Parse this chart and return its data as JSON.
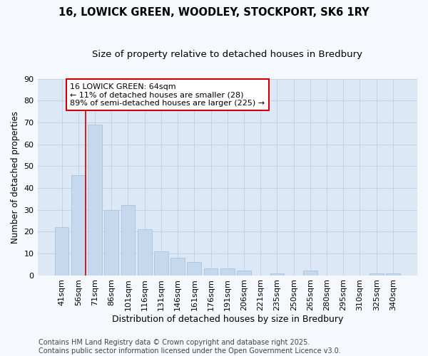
{
  "title": "16, LOWICK GREEN, WOODLEY, STOCKPORT, SK6 1RY",
  "subtitle": "Size of property relative to detached houses in Bredbury",
  "xlabel": "Distribution of detached houses by size in Bredbury",
  "ylabel": "Number of detached properties",
  "categories": [
    "41sqm",
    "56sqm",
    "71sqm",
    "86sqm",
    "101sqm",
    "116sqm",
    "131sqm",
    "146sqm",
    "161sqm",
    "176sqm",
    "191sqm",
    "206sqm",
    "221sqm",
    "235sqm",
    "250sqm",
    "265sqm",
    "280sqm",
    "295sqm",
    "310sqm",
    "325sqm",
    "340sqm"
  ],
  "values": [
    22,
    46,
    69,
    30,
    32,
    21,
    11,
    8,
    6,
    3,
    3,
    2,
    0,
    1,
    0,
    2,
    0,
    0,
    0,
    1,
    1
  ],
  "bar_color": "#c5d8ee",
  "bar_edge_color": "#a8c4e0",
  "grid_color": "#c0d4e8",
  "plot_bg_color": "#dce8f5",
  "fig_bg_color": "#f5f8fc",
  "vline_color": "#cc0000",
  "vline_x_index": 1,
  "annotation_text": "16 LOWICK GREEN: 64sqm\n← 11% of detached houses are smaller (28)\n89% of semi-detached houses are larger (225) →",
  "annotation_box_facecolor": "#ffffff",
  "annotation_box_edgecolor": "#cc0000",
  "ylim": [
    0,
    90
  ],
  "yticks": [
    0,
    10,
    20,
    30,
    40,
    50,
    60,
    70,
    80,
    90
  ],
  "footer_text": "Contains HM Land Registry data © Crown copyright and database right 2025.\nContains public sector information licensed under the Open Government Licence v3.0.",
  "title_fontsize": 10.5,
  "subtitle_fontsize": 9.5,
  "xlabel_fontsize": 9,
  "ylabel_fontsize": 8.5,
  "tick_fontsize": 8,
  "annotation_fontsize": 8,
  "footer_fontsize": 7
}
